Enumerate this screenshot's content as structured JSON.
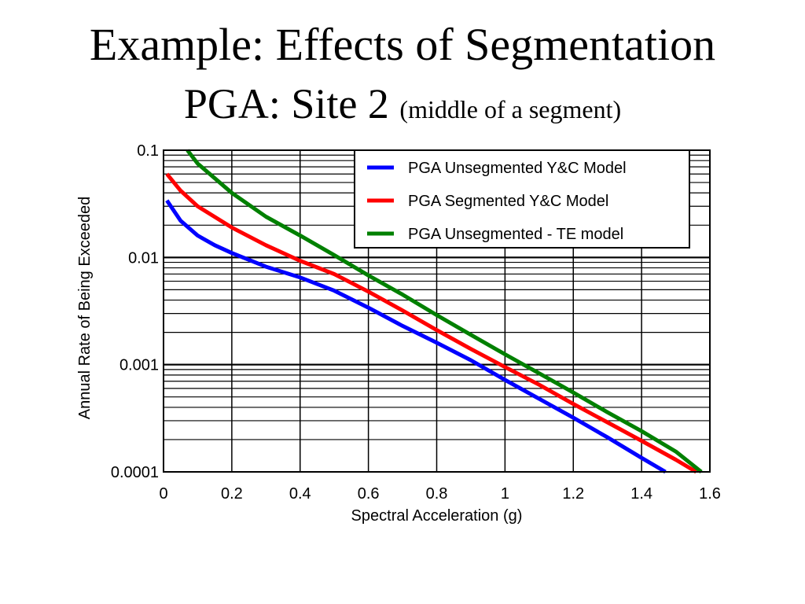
{
  "slide": {
    "title_line1": "Example: Effects of Segmentation",
    "title_line2": "PGA: Site 2",
    "title_line2_sub": "(middle of a segment)"
  },
  "chart_data": {
    "type": "line",
    "title": "",
    "xlabel": "Spectral Acceleration (g)",
    "ylabel": "Annual Rate of Being Exceeded",
    "xlim": [
      0,
      1.6
    ],
    "ylim": [
      0.0001,
      0.1
    ],
    "yscale": "log",
    "x_ticks": [
      "0",
      "0.2",
      "0.4",
      "0.6",
      "0.8",
      "1",
      "1.2",
      "1.4",
      "1.6"
    ],
    "y_ticks": [
      "0.0001",
      "0.001",
      "0.01",
      "0.1"
    ],
    "grid": true,
    "legend_position": "top-right",
    "series": [
      {
        "name": "PGA Unsegmented Y&C Model",
        "color": "#0000ff",
        "x": [
          0.01,
          0.05,
          0.1,
          0.15,
          0.2,
          0.3,
          0.4,
          0.5,
          0.6,
          0.7,
          0.8,
          0.9,
          1.0,
          1.1,
          1.2,
          1.3,
          1.4,
          1.47
        ],
        "y": [
          0.034,
          0.022,
          0.016,
          0.013,
          0.011,
          0.0082,
          0.0065,
          0.0049,
          0.0034,
          0.0023,
          0.0016,
          0.0011,
          0.00072,
          0.00048,
          0.00032,
          0.00021,
          0.000135,
          0.0001
        ]
      },
      {
        "name": "PGA Segmented Y&C Model",
        "color": "#ff0000",
        "x": [
          0.01,
          0.05,
          0.1,
          0.2,
          0.3,
          0.4,
          0.5,
          0.6,
          0.7,
          0.8,
          0.9,
          1.0,
          1.1,
          1.2,
          1.3,
          1.4,
          1.5,
          1.56
        ],
        "y": [
          0.06,
          0.042,
          0.03,
          0.019,
          0.013,
          0.0093,
          0.007,
          0.0048,
          0.0032,
          0.0021,
          0.0014,
          0.00095,
          0.00065,
          0.00043,
          0.00029,
          0.000195,
          0.00013,
          0.0001
        ]
      },
      {
        "name": "PGA Unsegmented - TE model",
        "color": "#008000",
        "x": [
          0.07,
          0.1,
          0.2,
          0.3,
          0.4,
          0.5,
          0.6,
          0.7,
          0.8,
          0.9,
          1.0,
          1.1,
          1.2,
          1.3,
          1.4,
          1.5,
          1.575
        ],
        "y": [
          0.1,
          0.075,
          0.04,
          0.024,
          0.016,
          0.0105,
          0.0068,
          0.0045,
          0.0029,
          0.0019,
          0.00125,
          0.00083,
          0.00055,
          0.00036,
          0.00024,
          0.000155,
          0.0001
        ]
      }
    ]
  }
}
